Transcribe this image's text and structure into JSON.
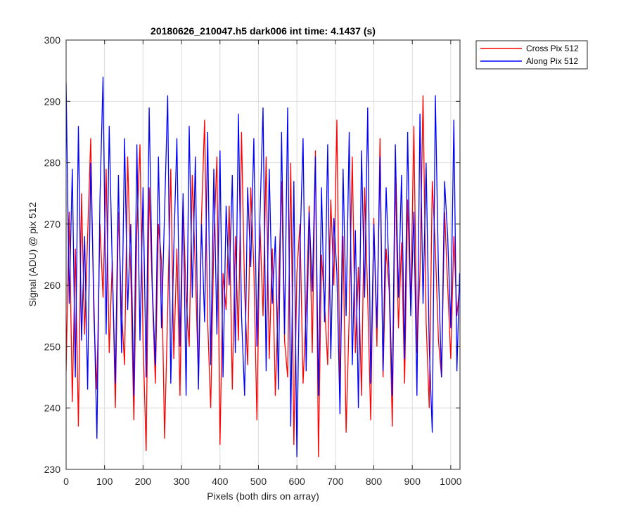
{
  "chart_data": {
    "type": "line",
    "title": "20180626_210047.h5  dark006   int time: 4.1437 (s)",
    "xlabel": "Pixels (both dirs on array)",
    "ylabel": "Signal (ADU) @ pix 512",
    "xlim": [
      0,
      1024
    ],
    "ylim": [
      230,
      300
    ],
    "xticks": [
      0,
      100,
      200,
      300,
      400,
      500,
      600,
      700,
      800,
      900,
      1000
    ],
    "yticks": [
      230,
      240,
      250,
      260,
      270,
      280,
      290,
      300
    ],
    "grid": true,
    "legend_position": "outside-top-right",
    "series": [
      {
        "name": "Cross Pix 512",
        "color": "#ff0000",
        "x": [
          0,
          8,
          16,
          24,
          32,
          40,
          48,
          56,
          64,
          72,
          80,
          88,
          96,
          104,
          112,
          120,
          128,
          136,
          144,
          152,
          160,
          168,
          176,
          184,
          192,
          200,
          208,
          216,
          224,
          232,
          240,
          248,
          256,
          264,
          272,
          280,
          288,
          296,
          304,
          312,
          320,
          328,
          336,
          344,
          352,
          360,
          368,
          376,
          384,
          392,
          400,
          408,
          416,
          424,
          432,
          440,
          448,
          456,
          464,
          472,
          480,
          488,
          496,
          504,
          512,
          520,
          528,
          536,
          544,
          552,
          560,
          568,
          576,
          584,
          592,
          600,
          608,
          616,
          624,
          632,
          640,
          648,
          656,
          664,
          672,
          680,
          688,
          696,
          704,
          712,
          720,
          728,
          736,
          744,
          752,
          760,
          768,
          776,
          784,
          792,
          800,
          808,
          816,
          824,
          832,
          840,
          848,
          856,
          864,
          872,
          880,
          888,
          896,
          904,
          912,
          920,
          928,
          936,
          944,
          952,
          960,
          968,
          976,
          984,
          992,
          1000,
          1008,
          1016,
          1023
        ],
        "values": [
          246,
          272,
          241,
          266,
          237,
          275,
          252,
          268,
          284,
          255,
          243,
          270,
          258,
          279,
          249,
          264,
          240,
          272,
          256,
          247,
          281,
          262,
          238,
          269,
          283,
          251,
          233,
          276,
          259,
          244,
          270,
          264,
          235,
          256,
          279,
          248,
          266,
          242,
          274,
          258,
          250,
          278,
          262,
          245,
          271,
          287,
          254,
          240,
          267,
          281,
          234,
          262,
          256,
          273,
          243,
          268,
          251,
          285,
          259,
          247,
          276,
          263,
          238,
          270,
          255,
          281,
          248,
          266,
          242,
          259,
          277,
          251,
          245,
          280,
          234,
          262,
          270,
          244,
          256,
          273,
          249,
          282,
          232,
          265,
          257,
          247,
          274,
          260,
          287,
          243,
          268,
          236,
          255,
          281,
          249,
          263,
          242,
          276,
          258,
          238,
          271,
          250,
          284,
          245,
          266,
          259,
          237,
          278,
          253,
          267,
          244,
          274,
          256,
          286,
          249,
          262,
          291,
          254,
          240,
          277,
          266,
          251,
          245,
          272,
          260,
          248,
          268,
          255,
          260
        ]
      },
      {
        "name": "Along Pix 512",
        "color": "#0000ff",
        "x": [
          0,
          8,
          16,
          24,
          32,
          40,
          48,
          56,
          64,
          72,
          80,
          88,
          96,
          104,
          112,
          120,
          128,
          136,
          144,
          152,
          160,
          168,
          176,
          184,
          192,
          200,
          208,
          216,
          224,
          232,
          240,
          248,
          256,
          264,
          272,
          280,
          288,
          296,
          304,
          312,
          320,
          328,
          336,
          344,
          352,
          360,
          368,
          376,
          384,
          392,
          400,
          408,
          416,
          424,
          432,
          440,
          448,
          456,
          464,
          472,
          480,
          488,
          496,
          504,
          512,
          520,
          528,
          536,
          544,
          552,
          560,
          568,
          576,
          584,
          592,
          600,
          608,
          616,
          624,
          632,
          640,
          648,
          656,
          664,
          672,
          680,
          688,
          696,
          704,
          712,
          720,
          728,
          736,
          744,
          752,
          760,
          768,
          776,
          784,
          792,
          800,
          808,
          816,
          824,
          832,
          840,
          848,
          856,
          864,
          872,
          880,
          888,
          896,
          904,
          912,
          920,
          928,
          936,
          944,
          952,
          960,
          968,
          976,
          984,
          992,
          1000,
          1008,
          1016,
          1023
        ],
        "values": [
          293,
          257,
          279,
          245,
          286,
          251,
          268,
          243,
          280,
          258,
          235,
          274,
          294,
          252,
          286,
          263,
          244,
          278,
          249,
          284,
          256,
          270,
          242,
          283,
          251,
          276,
          245,
          289,
          260,
          247,
          281,
          253,
          272,
          291,
          244,
          266,
          284,
          250,
          275,
          242,
          286,
          258,
          281,
          243,
          270,
          254,
          285,
          247,
          279,
          252,
          282,
          245,
          273,
          260,
          278,
          249,
          288,
          255,
          242,
          276,
          263,
          284,
          250,
          271,
          289,
          246,
          279,
          257,
          268,
          243,
          285,
          252,
          289,
          237,
          277,
          232,
          266,
          284,
          246,
          272,
          259,
          281,
          242,
          276,
          254,
          283,
          248,
          271,
          262,
          239,
          279,
          255,
          285,
          247,
          269,
          240,
          282,
          258,
          289,
          244,
          270,
          253,
          281,
          246,
          276,
          261,
          242,
          283,
          258,
          278,
          248,
          285,
          255,
          272,
          242,
          288,
          257,
          280,
          250,
          236,
          291,
          262,
          245,
          277,
          268,
          253,
          287,
          246,
          262
        ]
      }
    ]
  }
}
